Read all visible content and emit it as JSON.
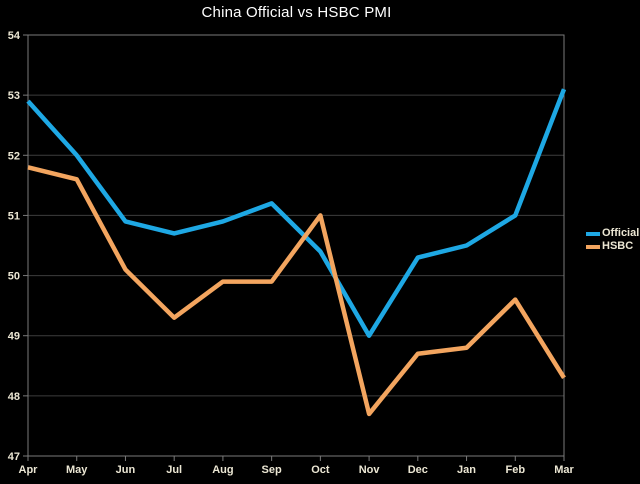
{
  "chart_data": {
    "type": "line",
    "title": "China Official vs HSBC PMI",
    "categories": [
      "Apr",
      "May",
      "Jun",
      "Jul",
      "Aug",
      "Sep",
      "Oct",
      "Nov",
      "Dec",
      "Jan",
      "Feb",
      "Mar"
    ],
    "series": [
      {
        "name": "Official",
        "color": "#1ea8e4",
        "values": [
          52.9,
          52.0,
          50.9,
          50.7,
          50.9,
          51.2,
          50.4,
          49.0,
          50.3,
          50.5,
          51.0,
          53.1
        ]
      },
      {
        "name": "HSBC",
        "color": "#f3a55f",
        "values": [
          51.8,
          51.6,
          50.1,
          49.3,
          49.9,
          49.9,
          51.0,
          47.7,
          48.7,
          48.8,
          49.6,
          48.3
        ]
      }
    ],
    "ylim": [
      47,
      54
    ],
    "y_ticks": [
      54,
      53,
      52,
      51,
      50,
      49,
      48,
      47
    ],
    "grid": "horizontal",
    "legend_position": "right",
    "colors": {
      "background": "#000000",
      "grid": "#3d3d3d",
      "axis": "#7a7a7a",
      "tick_label": "#ece7d4",
      "title": "#ffffff"
    }
  }
}
